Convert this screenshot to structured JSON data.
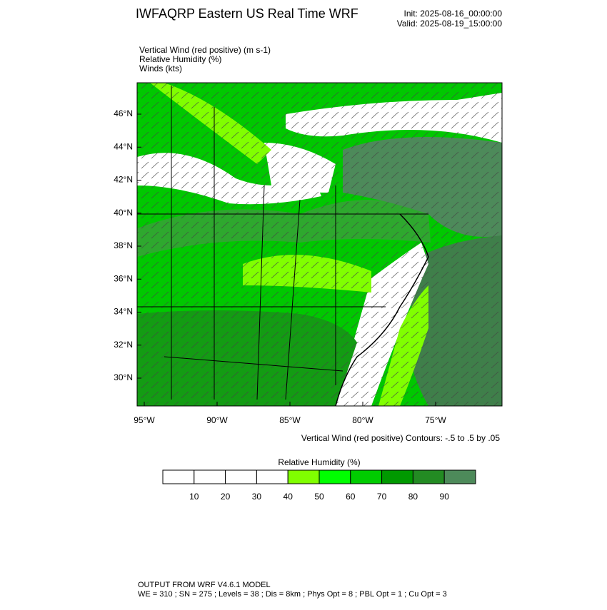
{
  "header": {
    "title": "IWFAQRP Eastern US Real Time WRF",
    "init": "Init: 2025-08-16_00:00:00",
    "valid": "Valid: 2025-08-19_15:00:00"
  },
  "fields": [
    "Vertical Wind (red positive)   (m s-1)",
    "Relative Humidity   (%)",
    "Winds   (kts)"
  ],
  "map": {
    "lat_labels": [
      "46°N",
      "44°N",
      "42°N",
      "40°N",
      "38°N",
      "36°N",
      "34°N",
      "32°N",
      "30°N"
    ],
    "lon_labels": [
      "95°W",
      "90°W",
      "85°W",
      "80°W",
      "75°W"
    ],
    "contour_note": "Vertical Wind (red positive) Contours: -.5 to .5 by .05"
  },
  "colorbar": {
    "title": "Relative Humidity  (%)",
    "colors": [
      "#ffffff",
      "#ffffff",
      "#ffffff",
      "#ffffff",
      "#80ff00",
      "#00ff00",
      "#00cc00",
      "#009900",
      "#238b23",
      "#4d8a5a"
    ],
    "labels": [
      10,
      20,
      30,
      40,
      50,
      60,
      70,
      80,
      90
    ]
  },
  "footer": [
    "OUTPUT FROM WRF V4.6.1 MODEL",
    "WE = 310 ; SN = 275 ; Levels = 38 ; Dis = 8km ; Phys Opt = 8 ; PBL Opt = 1 ; Cu Opt = 3"
  ]
}
